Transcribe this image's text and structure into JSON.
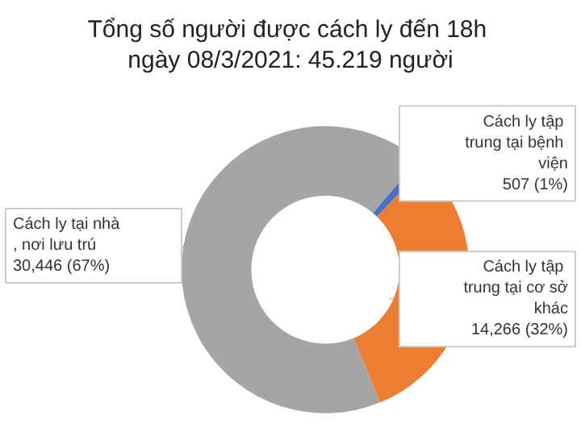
{
  "chart_data": {
    "type": "donut",
    "title": "Tổng số người được cách ly đến 18h ngày 08/3/2021: 45.219 người",
    "categories": [
      "Cách ly tập trung tại bệnh viện",
      "Cách ly tập trung tại cơ sở khác",
      "Cách ly tại nhà, nơi lưu trú"
    ],
    "values": [
      507,
      14266,
      30446
    ],
    "colors": [
      "#4472c4",
      "#ed7d31",
      "#a5a5a5"
    ],
    "value_labels": [
      "507 (1%)",
      "14,266 (32%)",
      "30,446 (67%)"
    ]
  }
}
